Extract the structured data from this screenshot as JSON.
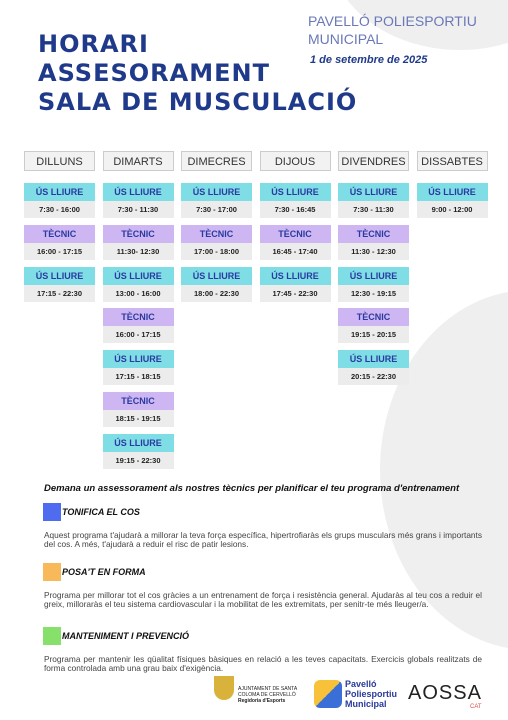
{
  "header": {
    "title": [
      "HORARI",
      "ASSESORAMENT",
      "SALA DE MUSCULACIÓ"
    ],
    "venue": [
      "PAVELLÓ POLIESPORTIU",
      "MUNICIPAL"
    ],
    "date": "1 de setembre de 2025"
  },
  "schedule": {
    "days": [
      {
        "name": "DILLUNS",
        "slots": [
          {
            "type": "ÚS LLIURE",
            "time": "7:30 - 16:00"
          },
          {
            "type": "TÈCNIC",
            "time": "16:00 - 17:15"
          },
          {
            "type": "ÚS LLIURE",
            "time": "17:15 - 22:30"
          }
        ]
      },
      {
        "name": "DIMARTS",
        "slots": [
          {
            "type": "ÚS LLIURE",
            "time": "7:30 - 11:30"
          },
          {
            "type": "TÈCNIC",
            "time": "11:30- 12:30"
          },
          {
            "type": "ÚS LLIURE",
            "time": "13:00 - 16:00"
          },
          {
            "type": "TÈCNIC",
            "time": "16:00 - 17:15"
          },
          {
            "type": "ÚS LLIURE",
            "time": "17:15 - 18:15"
          },
          {
            "type": "TÈCNIC",
            "time": "18:15 - 19:15"
          },
          {
            "type": "ÚS LLIURE",
            "time": "19:15 - 22:30"
          }
        ]
      },
      {
        "name": "DIMECRES",
        "slots": [
          {
            "type": "ÚS LLIURE",
            "time": "7:30 - 17:00"
          },
          {
            "type": "TÈCNIC",
            "time": "17:00 - 18:00"
          },
          {
            "type": "ÚS LLIURE",
            "time": "18:00 - 22:30"
          }
        ]
      },
      {
        "name": "DIJOUS",
        "slots": [
          {
            "type": "ÚS LLIURE",
            "time": "7:30 - 16:45"
          },
          {
            "type": "TÈCNIC",
            "time": "16:45 - 17:40"
          },
          {
            "type": "ÚS LLIURE",
            "time": "17:45 - 22:30"
          }
        ]
      },
      {
        "name": "DIVENDRES",
        "slots": [
          {
            "type": "ÚS LLIURE",
            "time": "7:30 - 11:30"
          },
          {
            "type": "TÈCNIC",
            "time": "11:30 - 12:30"
          },
          {
            "type": "ÚS LLIURE",
            "time": "12:30 - 19:15"
          },
          {
            "type": "TÈCNIC",
            "time": "19:15 - 20:15"
          },
          {
            "type": "ÚS LLIURE",
            "time": "20:15 - 22:30"
          }
        ]
      },
      {
        "name": "DISSABTES",
        "slots": [
          {
            "type": "ÚS LLIURE",
            "time": "9:00 - 12:00"
          }
        ]
      }
    ]
  },
  "intro": "Demana un assessorament als nostres tècnics per planificar el teu programa d'entrenament",
  "programs": [
    {
      "title": "TONIFICA EL COS",
      "color": "#4f6cf0",
      "text": "Aquest programa t'ajudarà a millorar la teva força específica, hipertrofiaràs els grups musculars més grans i importants del cos. A més, t'ajudarà a reduir el risc de patir lesions."
    },
    {
      "title": "POSA'T EN FORMA",
      "color": "#f7b95a",
      "text": "Programa per millorar tot el cos gràcies a un entrenament de força i resistència general. Ajudaràs al teu cos a reduir el greix, milloraràs el teu sistema cardiovascular i la mobilitat de les extremitats, per senitr-te més lleuger/a."
    },
    {
      "title": "MANTENIMENT I PREVENCIÓ",
      "color": "#86e06a",
      "text": "Programa per mantenir les qüalitat físiques bàsiques en relació a les teves capacitats. Exercicis globals realitzats de forma controlada amb una grau baix d'exigència."
    }
  ],
  "footer": {
    "ajuntament": "AJUNTAMENT DE SANTA COLOMA DE CERVELLÓ",
    "regidoria": "Regidoria d'Esports",
    "pavello": [
      "Pavelló",
      "Poliesportiu",
      "Municipal"
    ],
    "aossa": "AOSSA",
    "cat": "CAT"
  }
}
